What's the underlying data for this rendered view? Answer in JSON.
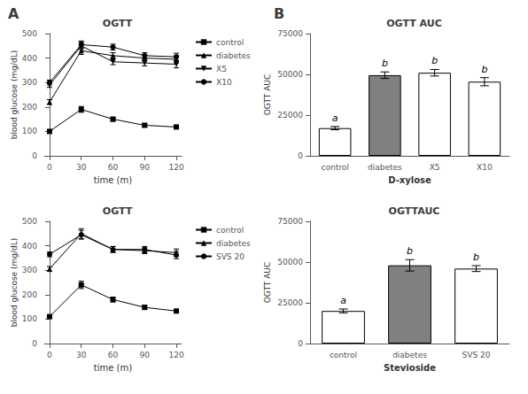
{
  "chart_data": [
    {
      "type": "line",
      "title": "OGTT",
      "xlabel": "time (m)",
      "ylabel": "blood glucose (mg/dL)",
      "x": [
        0,
        30,
        60,
        90,
        120
      ],
      "xlim": [
        -5,
        125
      ],
      "xticks": [
        0,
        30,
        60,
        90,
        120
      ],
      "ylim": [
        0,
        500
      ],
      "yticks": [
        0,
        100,
        200,
        300,
        400,
        500
      ],
      "grid": false,
      "legend": "right",
      "annotations": [
        "A"
      ],
      "series": [
        {
          "name": "control",
          "color": "black",
          "marker": "square",
          "values": [
            100,
            190,
            150,
            125,
            118
          ],
          "errors": [
            5,
            12,
            8,
            6,
            6
          ]
        },
        {
          "name": "diabetes",
          "color": "black",
          "marker": "triangle",
          "values": [
            220,
            430,
            410,
            400,
            395
          ],
          "errors": [
            10,
            15,
            12,
            12,
            15
          ]
        },
        {
          "name": "X5",
          "color": "black",
          "marker": "triangle-down",
          "values": [
            290,
            450,
            385,
            380,
            375
          ],
          "errors": [
            10,
            15,
            12,
            12,
            15
          ]
        },
        {
          "name": "X10",
          "color": "black",
          "marker": "circle",
          "values": [
            300,
            455,
            445,
            410,
            405
          ],
          "errors": [
            10,
            15,
            12,
            12,
            15
          ]
        }
      ]
    },
    {
      "type": "line",
      "title": "OGTT",
      "xlabel": "time (m)",
      "ylabel": "blood glucose (mg/dL)",
      "x": [
        0,
        30,
        60,
        90,
        120
      ],
      "xlim": [
        -5,
        125
      ],
      "xticks": [
        0,
        30,
        60,
        90,
        120
      ],
      "ylim": [
        0,
        500
      ],
      "yticks": [
        0,
        100,
        200,
        300,
        400,
        500
      ],
      "grid": false,
      "legend": "right",
      "series": [
        {
          "name": "control",
          "color": "black",
          "marker": "square",
          "values": [
            110,
            240,
            180,
            148,
            133
          ],
          "errors": [
            5,
            15,
            10,
            8,
            6
          ]
        },
        {
          "name": "diabetes",
          "color": "black",
          "marker": "triangle",
          "values": [
            305,
            450,
            385,
            380,
            372
          ],
          "errors": [
            10,
            20,
            12,
            12,
            15
          ]
        },
        {
          "name": "SVS 20",
          "color": "black",
          "marker": "circle",
          "values": [
            365,
            445,
            385,
            385,
            362
          ],
          "errors": [
            10,
            18,
            12,
            12,
            15
          ]
        }
      ]
    },
    {
      "type": "bar",
      "title": "OGTT AUC",
      "xlabel": "D-xylose",
      "ylabel": "OGTT AUC",
      "categories": [
        "control",
        "diabetes",
        "X5",
        "X10"
      ],
      "values": [
        17000,
        49500,
        51000,
        45500
      ],
      "errors": [
        1000,
        2000,
        2000,
        2500
      ],
      "letters": [
        "a",
        "b",
        "b",
        "b"
      ],
      "colors": [
        "white",
        "#808080",
        "white",
        "white"
      ],
      "ylim": [
        0,
        75000
      ],
      "yticks": [
        0,
        25000,
        50000,
        75000
      ],
      "grid": false,
      "annotations": [
        "B"
      ]
    },
    {
      "type": "bar",
      "title": "OGTTAUC",
      "xlabel": "Stevioside",
      "ylabel": "OGTT AUC",
      "categories": [
        "control",
        "diabetes",
        "SVS 20"
      ],
      "values": [
        20000,
        48000,
        46000
      ],
      "errors": [
        1200,
        3500,
        1800
      ],
      "letters": [
        "a",
        "b",
        "b"
      ],
      "colors": [
        "white",
        "#808080",
        "white"
      ],
      "ylim": [
        0,
        75000
      ],
      "yticks": [
        0,
        25000,
        50000,
        75000
      ],
      "grid": false
    }
  ]
}
